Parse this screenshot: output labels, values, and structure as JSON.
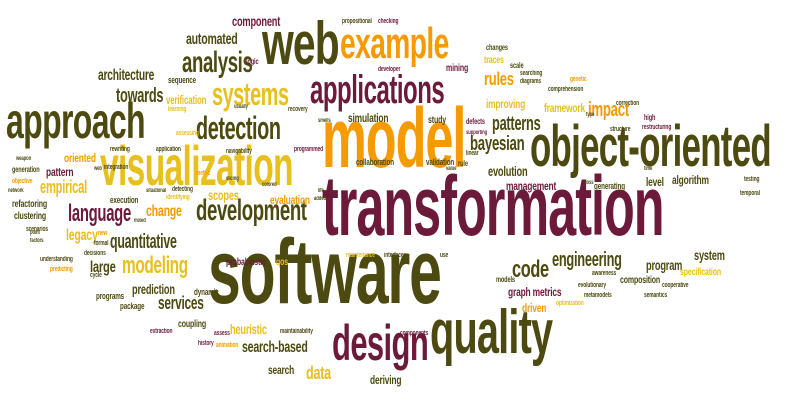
{
  "palette": {
    "maroon": "#6b1a3a",
    "orange": "#f59b00",
    "yellow": "#e8c01e",
    "olive": "#4c4a10",
    "brown": "#8a6a1a"
  },
  "words": {
    "software": "software",
    "transformation": "transformation",
    "model": "model",
    "object_oriented": "object-oriented",
    "visualization": "visualization",
    "quality": "quality",
    "design": "design",
    "web": "web",
    "example": "example",
    "approach": "approach",
    "applications": "applications",
    "development": "development",
    "detection": "detection",
    "systems": "systems",
    "analysis": "analysis",
    "modeling": "modeling",
    "bayesian": "bayesian",
    "engineering": "engineering",
    "code": "code",
    "language": "language",
    "services": "services",
    "search_based": "search-based",
    "patterns": "patterns",
    "quantitative": "quantitative",
    "architecture": "architecture",
    "towards": "towards",
    "automated": "automated",
    "component": "component",
    "rules": "rules",
    "impact": "impact",
    "empirical": "empirical",
    "legacy": "legacy",
    "large": "large",
    "heuristic": "heuristic",
    "data": "data",
    "deriving": "deriving",
    "search": "search",
    "prediction": "prediction",
    "graph_metrics": "graph metrics",
    "driven": "driven",
    "evolution": "evolution",
    "management": "management",
    "program": "program",
    "system": "system",
    "level": "level",
    "algorithm": "algorithm",
    "change": "change",
    "scopes": "scopes",
    "evaluation": "evaluation",
    "simulation": "simulation",
    "study": "study",
    "verification": "verification",
    "improving": "improving",
    "framework": "framework",
    "mining": "mining",
    "traces": "traces",
    "pattern": "pattern",
    "oriented": "oriented",
    "refactoring": "refactoring",
    "clustering": "clustering",
    "coupling": "coupling",
    "package": "package",
    "programs": "programs",
    "composition": "composition",
    "specification": "specification",
    "execution": "execution",
    "collaboration": "collaboration",
    "validation": "validation",
    "probabilistic": "probabilistic",
    "qos": "qos",
    "sequence": "sequence",
    "generating": "generating",
    "dynamic": "dynamic",
    "models": "models",
    "defects": "defects",
    "changes": "changes",
    "scale": "scale",
    "logic": "logic",
    "developer": "developer",
    "propositional": "propositional",
    "checking": "checking",
    "searching": "searching",
    "diagrams": "diagrams",
    "comprehension": "comprehension",
    "genetic": "genetic",
    "correction": "correction",
    "high": "high",
    "restructuring": "restructuring",
    "structure": "structure",
    "testing": "testing",
    "temporal": "temporal",
    "cooperative": "cooperative",
    "semantics": "semantics",
    "metamodels": "metamodels",
    "optimization": "optimization",
    "evolutionary": "evolutionary",
    "awareness": "awareness",
    "linear": "linear",
    "rule": "rule",
    "use": "use",
    "interfaces": "interfaces",
    "maintenance": "maintenance",
    "components": "components",
    "maintainability": "maintainability",
    "assess": "assess",
    "extraction": "extraction",
    "history": "history",
    "animation": "animation",
    "decisions": "decisions",
    "predicting": "predicting",
    "understanding": "understanding",
    "generation": "generation",
    "objective": "objective",
    "scenarios": "scenarios",
    "network": "network",
    "integration": "integration",
    "smells": "smells",
    "navigability": "navigability",
    "application": "application",
    "rewriting": "rewriting",
    "programmed": "programmed",
    "recovery": "recovery",
    "learning": "learning",
    "assessing": "assessing",
    "detecting": "detecting",
    "identifying": "identifying",
    "situational": "situational",
    "metric": "metric",
    "cycle": "cycle",
    "factors": "factors",
    "mixed": "mixed",
    "formal": "formal",
    "new": "new",
    "point": "point",
    "web_small": "web",
    "weapon": "weapon",
    "colored": "colored",
    "slicing": "slicing",
    "usually": "usually",
    "life": "life",
    "added": "added",
    "value": "value",
    "supporting": "supporting",
    "time": "time",
    "type": "type",
    "doss": "doss"
  }
}
